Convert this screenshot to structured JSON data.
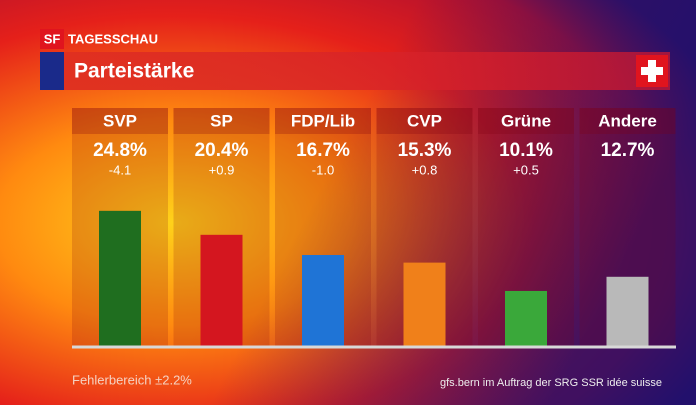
{
  "header": {
    "logo": "SF",
    "program": "TAGESSCHAU"
  },
  "chart_data": {
    "type": "bar",
    "title": "Parteistärke",
    "categories": [
      "SVP",
      "SP",
      "FDP/Lib",
      "CVP",
      "Grüne",
      "Andere"
    ],
    "values": [
      24.8,
      20.4,
      16.7,
      15.3,
      10.1,
      12.7
    ],
    "value_labels": [
      "24.8%",
      "20.4%",
      "16.7%",
      "15.3%",
      "10.1%",
      "12.7%"
    ],
    "changes": [
      "-4.1",
      "+0.9",
      "-1.0",
      "+0.8",
      "+0.5",
      null
    ],
    "colors": [
      "#1f6e1f",
      "#d4161f",
      "#1f74d6",
      "#f0801a",
      "#3aa83a",
      "#b9b9b9"
    ],
    "footnote": "Fehlerbereich ±2.2%",
    "source": "gfs.bern im Auftrag der SRG SSR idée suisse"
  }
}
